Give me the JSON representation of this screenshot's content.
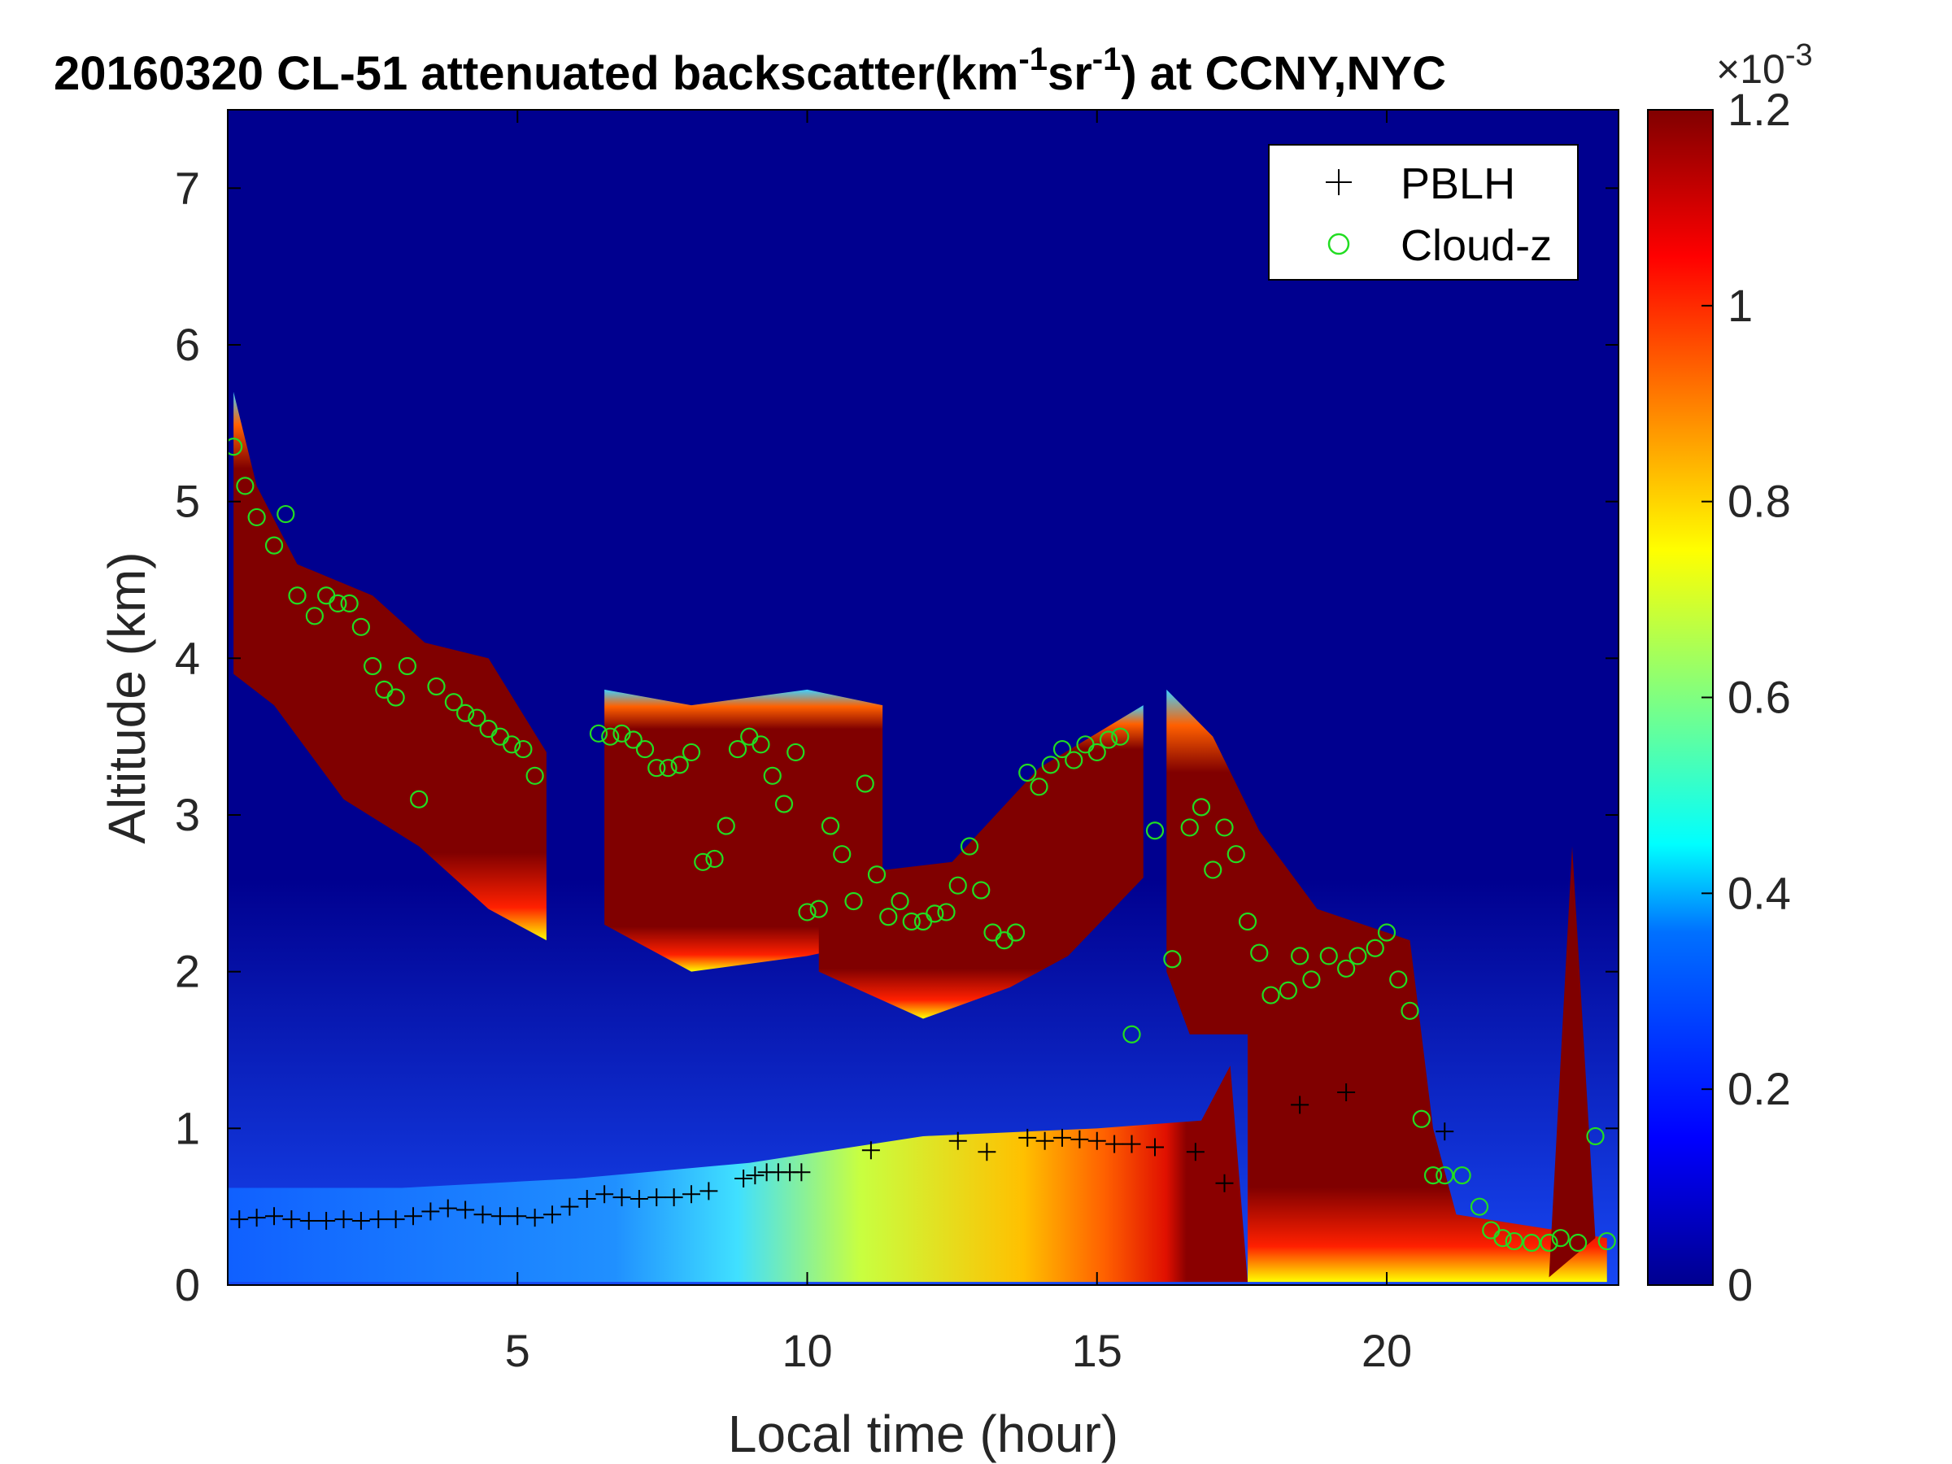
{
  "figure": {
    "title_main": "20160320  CL-51 attenuated backscatter(km",
    "title_exp1": "-1",
    "title_mid": "sr",
    "title_exp2": "-1",
    "title_end": ") at CCNY,NYC",
    "colorbar_multiplier_base": "×10",
    "colorbar_multiplier_exp": "-3"
  },
  "chart_data": {
    "type": "heatmap",
    "title": "20160320  CL-51 attenuated backscatter(km-1sr-1) at CCNY,NYC",
    "xlabel": "Local time (hour)",
    "ylabel": "Altitude (km)",
    "xlim": [
      0,
      24
    ],
    "ylim": [
      0,
      7.5
    ],
    "x_ticks": [
      5,
      10,
      15,
      20
    ],
    "y_ticks": [
      0,
      1,
      2,
      3,
      4,
      5,
      6,
      7
    ],
    "grid": false,
    "colormap": "jet",
    "colorbar": {
      "range": [
        0,
        0.0012
      ],
      "ticks": [
        0,
        0.2,
        0.4,
        0.6,
        0.8,
        1,
        1.2
      ],
      "multiplier": "×10^-3",
      "colors": [
        "#00008f",
        "#0000ff",
        "#0080ff",
        "#00ffff",
        "#80ff80",
        "#ffff00",
        "#ff8000",
        "#ff0000",
        "#800000"
      ]
    },
    "legend": {
      "placement": "top-right",
      "entries": [
        {
          "name": "PBLH",
          "marker": "+",
          "color": "#000000"
        },
        {
          "name": "Cloud-z",
          "marker": "o",
          "color": "#22dd22"
        }
      ]
    },
    "pblh": {
      "x": [
        0.2,
        0.5,
        0.8,
        1.1,
        1.4,
        1.7,
        2.0,
        2.3,
        2.6,
        2.9,
        3.2,
        3.5,
        3.8,
        4.1,
        4.4,
        4.7,
        5.0,
        5.3,
        5.6,
        5.9,
        6.2,
        6.5,
        6.8,
        7.1,
        7.4,
        7.7,
        8.0,
        8.3,
        8.9,
        9.1,
        9.3,
        9.5,
        9.7,
        9.9,
        11.1,
        12.6,
        13.1,
        13.8,
        14.1,
        14.4,
        14.7,
        15.0,
        15.3,
        15.6,
        16.0,
        16.7,
        17.2,
        18.5,
        19.3,
        21.0
      ],
      "y": [
        0.42,
        0.43,
        0.44,
        0.42,
        0.41,
        0.41,
        0.42,
        0.41,
        0.42,
        0.42,
        0.44,
        0.47,
        0.49,
        0.48,
        0.45,
        0.44,
        0.44,
        0.43,
        0.45,
        0.5,
        0.55,
        0.58,
        0.56,
        0.55,
        0.56,
        0.56,
        0.58,
        0.6,
        0.68,
        0.7,
        0.72,
        0.72,
        0.72,
        0.72,
        0.86,
        0.92,
        0.85,
        0.94,
        0.92,
        0.94,
        0.93,
        0.92,
        0.9,
        0.9,
        0.88,
        0.85,
        0.65,
        1.15,
        1.23,
        0.98
      ]
    },
    "cloud_z": {
      "x": [
        0.1,
        0.3,
        0.5,
        0.8,
        1.0,
        1.2,
        1.5,
        1.7,
        1.9,
        2.1,
        2.3,
        2.5,
        2.7,
        2.9,
        3.1,
        3.3,
        3.6,
        3.9,
        4.1,
        4.3,
        4.5,
        4.7,
        4.9,
        5.1,
        5.3,
        6.4,
        6.6,
        6.8,
        7.0,
        7.2,
        7.4,
        7.6,
        7.8,
        8.0,
        8.2,
        8.4,
        8.6,
        8.8,
        9.0,
        9.2,
        9.4,
        9.6,
        9.8,
        10.0,
        10.2,
        10.4,
        10.6,
        10.8,
        11.0,
        11.2,
        11.4,
        11.6,
        11.8,
        12.0,
        12.2,
        12.4,
        12.6,
        12.8,
        13.0,
        13.2,
        13.4,
        13.6,
        13.8,
        14.0,
        14.2,
        14.4,
        14.6,
        14.8,
        15.0,
        15.2,
        15.4,
        15.6,
        16.0,
        16.3,
        16.6,
        16.8,
        17.0,
        17.2,
        17.4,
        17.6,
        17.8,
        18.0,
        18.3,
        18.5,
        18.7,
        19.0,
        19.3,
        19.5,
        19.8,
        20.0,
        20.2,
        20.4,
        20.6,
        20.8,
        21.0,
        21.3,
        21.6,
        21.8,
        22.0,
        22.2,
        22.5,
        22.8,
        23.0,
        23.3,
        23.6,
        23.8
      ],
      "y": [
        5.35,
        5.1,
        4.9,
        4.72,
        4.92,
        4.4,
        4.27,
        4.4,
        4.35,
        4.35,
        4.2,
        3.95,
        3.8,
        3.75,
        3.95,
        3.1,
        3.82,
        3.72,
        3.65,
        3.62,
        3.55,
        3.5,
        3.45,
        3.42,
        3.25,
        3.52,
        3.5,
        3.52,
        3.48,
        3.42,
        3.3,
        3.3,
        3.32,
        3.4,
        2.7,
        2.72,
        2.93,
        3.42,
        3.5,
        3.45,
        3.25,
        3.07,
        3.4,
        2.38,
        2.4,
        2.93,
        2.75,
        2.45,
        3.2,
        2.62,
        2.35,
        2.45,
        2.32,
        2.32,
        2.37,
        2.38,
        2.55,
        2.8,
        2.52,
        2.25,
        2.2,
        2.25,
        3.27,
        3.18,
        3.32,
        3.42,
        3.35,
        3.45,
        3.4,
        3.48,
        3.5,
        1.6,
        2.9,
        2.08,
        2.92,
        3.05,
        2.65,
        2.92,
        2.75,
        2.32,
        2.12,
        1.85,
        1.88,
        2.1,
        1.95,
        2.1,
        2.02,
        2.1,
        2.15,
        2.25,
        1.95,
        1.75,
        1.06,
        0.7,
        0.7,
        0.7,
        0.5,
        0.35,
        0.3,
        0.28,
        0.27,
        0.27,
        0.3,
        0.27,
        0.95,
        0.28,
        0.3,
        0.28
      ]
    }
  }
}
